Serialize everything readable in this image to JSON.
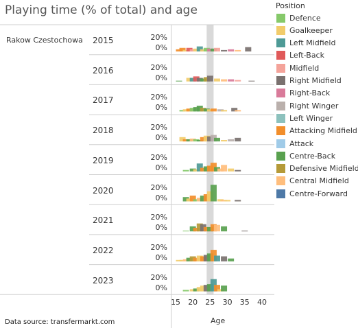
{
  "title": "Playing time (% of total) and age",
  "club": "Rakow Czestochowa",
  "source": "Data source: transfermarkt.com",
  "legend": {
    "title": "Position",
    "items": [
      {
        "label": "Defence",
        "color": "#86c96a"
      },
      {
        "label": "Goalkeeper",
        "color": "#f2cc6b"
      },
      {
        "label": "Left Midfield",
        "color": "#4e9a96"
      },
      {
        "label": "Left-Back",
        "color": "#e05a5a"
      },
      {
        "label": "Midfield",
        "color": "#f4a39a"
      },
      {
        "label": "Right Midfield",
        "color": "#7a716f"
      },
      {
        "label": "Right-Back",
        "color": "#d97b9a"
      },
      {
        "label": "Right Winger",
        "color": "#bab0ac"
      },
      {
        "label": "Left Winger",
        "color": "#8cc1bd"
      },
      {
        "label": "Attacking Midfield",
        "color": "#f28e2b"
      },
      {
        "label": "Attack",
        "color": "#a0cbe8"
      },
      {
        "label": "Centre-Back",
        "color": "#59a14f"
      },
      {
        "label": "Defensive Midfield",
        "color": "#b59a38"
      },
      {
        "label": "Central Midfield",
        "color": "#ffbe7d"
      },
      {
        "label": "Centre-Forward",
        "color": "#4e79a7"
      }
    ]
  },
  "chart_data": {
    "type": "bar",
    "xlabel": "Age",
    "x_ticks": [
      "15",
      "20",
      "25",
      "30",
      "35",
      "40"
    ],
    "y_ticks": [
      "20%",
      "0%"
    ],
    "highlight_age_range": [
      24,
      26
    ],
    "xlim": [
      15,
      40
    ],
    "ylim": [
      0,
      0.25
    ],
    "panels": [
      {
        "year": "2015",
        "bars": [
          {
            "age": 16,
            "value": 0.03,
            "pos": "Attacking Midfield"
          },
          {
            "age": 17,
            "value": 0.05,
            "pos": "Attacking Midfield"
          },
          {
            "age": 18,
            "value": 0.02,
            "pos": "Goalkeeper"
          },
          {
            "age": 19,
            "value": 0.05,
            "pos": "Left-Back"
          },
          {
            "age": 20,
            "value": 0.03,
            "pos": "Midfield"
          },
          {
            "age": 21,
            "value": 0.04,
            "pos": "Goalkeeper"
          },
          {
            "age": 22,
            "value": 0.07,
            "pos": "Left Midfield"
          },
          {
            "age": 23,
            "value": 0.03,
            "pos": "Goalkeeper"
          },
          {
            "age": 24,
            "value": 0.05,
            "pos": "Defence"
          },
          {
            "age": 25,
            "value": 0.04,
            "pos": "Right-Back"
          },
          {
            "age": 26,
            "value": 0.04,
            "pos": "Centre-Back"
          },
          {
            "age": 27,
            "value": 0.05,
            "pos": "Midfield"
          },
          {
            "age": 29,
            "value": 0.02,
            "pos": "Right Midfield"
          },
          {
            "age": 31,
            "value": 0.03,
            "pos": "Right-Back"
          },
          {
            "age": 33,
            "value": 0.02,
            "pos": "Central Midfield"
          },
          {
            "age": 36,
            "value": 0.06,
            "pos": "Right Midfield"
          }
        ]
      },
      {
        "year": "2016",
        "bars": [
          {
            "age": 16,
            "value": 0.01,
            "pos": "Centre-Back"
          },
          {
            "age": 19,
            "value": 0.05,
            "pos": "Goalkeeper"
          },
          {
            "age": 20,
            "value": 0.05,
            "pos": "Left Midfield"
          },
          {
            "age": 21,
            "value": 0.07,
            "pos": "Left-Back"
          },
          {
            "age": 22,
            "value": 0.05,
            "pos": "Right Midfield"
          },
          {
            "age": 23,
            "value": 0.04,
            "pos": "Centre-Back"
          },
          {
            "age": 24,
            "value": 0.06,
            "pos": "Defensive Midfield"
          },
          {
            "age": 25,
            "value": 0.08,
            "pos": "Right Midfield"
          },
          {
            "age": 27,
            "value": 0.04,
            "pos": "Goalkeeper"
          },
          {
            "age": 29,
            "value": 0.03,
            "pos": "Central Midfield"
          },
          {
            "age": 31,
            "value": 0.03,
            "pos": "Right-Back"
          },
          {
            "age": 33,
            "value": 0.02,
            "pos": "Midfield"
          },
          {
            "age": 37,
            "value": 0.01,
            "pos": "Right Midfield"
          }
        ]
      },
      {
        "year": "2017",
        "bars": [
          {
            "age": 17,
            "value": 0.02,
            "pos": "Defence"
          },
          {
            "age": 18,
            "value": 0.03,
            "pos": "Goalkeeper"
          },
          {
            "age": 19,
            "value": 0.04,
            "pos": "Attacking Midfield"
          },
          {
            "age": 20,
            "value": 0.05,
            "pos": "Defence"
          },
          {
            "age": 21,
            "value": 0.06,
            "pos": "Centre-Back"
          },
          {
            "age": 22,
            "value": 0.08,
            "pos": "Centre-Back"
          },
          {
            "age": 23,
            "value": 0.05,
            "pos": "Defensive Midfield"
          },
          {
            "age": 24,
            "value": 0.04,
            "pos": "Centre-Back"
          },
          {
            "age": 25,
            "value": 0.03,
            "pos": "Goalkeeper"
          },
          {
            "age": 26,
            "value": 0.04,
            "pos": "Attacking Midfield"
          },
          {
            "age": 28,
            "value": 0.03,
            "pos": "Right Winger"
          },
          {
            "age": 29,
            "value": 0.02,
            "pos": "Goalkeeper"
          },
          {
            "age": 32,
            "value": 0.05,
            "pos": "Right Midfield"
          },
          {
            "age": 33,
            "value": 0.02,
            "pos": "Central Midfield"
          }
        ]
      },
      {
        "year": "2018",
        "bars": [
          {
            "age": 17,
            "value": 0.06,
            "pos": "Goalkeeper"
          },
          {
            "age": 18,
            "value": 0.03,
            "pos": "Attacking Midfield"
          },
          {
            "age": 19,
            "value": 0.03,
            "pos": "Centre-Back"
          },
          {
            "age": 20,
            "value": 0.04,
            "pos": "Central Midfield"
          },
          {
            "age": 21,
            "value": 0.03,
            "pos": "Defence"
          },
          {
            "age": 22,
            "value": 0.02,
            "pos": "Centre-Back"
          },
          {
            "age": 23,
            "value": 0.06,
            "pos": "Attacking Midfield"
          },
          {
            "age": 24,
            "value": 0.08,
            "pos": "Goalkeeper"
          },
          {
            "age": 25,
            "value": 0.07,
            "pos": "Right Midfield"
          },
          {
            "age": 26,
            "value": 0.09,
            "pos": "Right Winger"
          },
          {
            "age": 27,
            "value": 0.05,
            "pos": "Centre-Back"
          },
          {
            "age": 29,
            "value": 0.02,
            "pos": "Goalkeeper"
          },
          {
            "age": 31,
            "value": 0.03,
            "pos": "Right Winger"
          },
          {
            "age": 33,
            "value": 0.05,
            "pos": "Right Midfield"
          }
        ]
      },
      {
        "year": "2019",
        "bars": [
          {
            "age": 18,
            "value": 0.02,
            "pos": "Defence"
          },
          {
            "age": 20,
            "value": 0.04,
            "pos": "Centre-Back"
          },
          {
            "age": 21,
            "value": 0.03,
            "pos": "Goalkeeper"
          },
          {
            "age": 22,
            "value": 0.11,
            "pos": "Left Midfield"
          },
          {
            "age": 23,
            "value": 0.05,
            "pos": "Attacking Midfield"
          },
          {
            "age": 24,
            "value": 0.07,
            "pos": "Centre-Back"
          },
          {
            "age": 25,
            "value": 0.08,
            "pos": "Attacking Midfield"
          },
          {
            "age": 26,
            "value": 0.12,
            "pos": "Attacking Midfield"
          },
          {
            "age": 27,
            "value": 0.06,
            "pos": "Centre-Back"
          },
          {
            "age": 28,
            "value": 0.04,
            "pos": "Central Midfield"
          },
          {
            "age": 29,
            "value": 0.09,
            "pos": "Central Midfield"
          },
          {
            "age": 31,
            "value": 0.04,
            "pos": "Goalkeeper"
          },
          {
            "age": 33,
            "value": 0.02,
            "pos": "Right Midfield"
          }
        ]
      },
      {
        "year": "2020",
        "bars": [
          {
            "age": 18,
            "value": 0.06,
            "pos": "Centre-Back"
          },
          {
            "age": 19,
            "value": 0.04,
            "pos": "Goalkeeper"
          },
          {
            "age": 20,
            "value": 0.08,
            "pos": "Attacking Midfield"
          },
          {
            "age": 21,
            "value": 0.03,
            "pos": "Defence"
          },
          {
            "age": 22,
            "value": 0.05,
            "pos": "Central Midfield"
          },
          {
            "age": 23,
            "value": 0.08,
            "pos": "Centre-Back"
          },
          {
            "age": 24,
            "value": 0.1,
            "pos": "Attacking Midfield"
          },
          {
            "age": 25,
            "value": 0.14,
            "pos": "Goalkeeper"
          },
          {
            "age": 26,
            "value": 0.23,
            "pos": "Centre-Back"
          },
          {
            "age": 28,
            "value": 0.03,
            "pos": "Goalkeeper"
          },
          {
            "age": 29,
            "value": 0.02,
            "pos": "Central Midfield"
          },
          {
            "age": 30,
            "value": 0.02,
            "pos": "Goalkeeper"
          },
          {
            "age": 33,
            "value": 0.02,
            "pos": "Right Midfield"
          }
        ]
      },
      {
        "year": "2021",
        "bars": [
          {
            "age": 18,
            "value": 0.01,
            "pos": "Defence"
          },
          {
            "age": 20,
            "value": 0.07,
            "pos": "Centre-Back"
          },
          {
            "age": 21,
            "value": 0.05,
            "pos": "Attacking Midfield"
          },
          {
            "age": 22,
            "value": 0.11,
            "pos": "Defensive Midfield"
          },
          {
            "age": 23,
            "value": 0.1,
            "pos": "Right Midfield"
          },
          {
            "age": 24,
            "value": 0.06,
            "pos": "Attacking Midfield"
          },
          {
            "age": 25,
            "value": 0.06,
            "pos": "Centre-Back"
          },
          {
            "age": 26,
            "value": 0.1,
            "pos": "Attacking Midfield"
          },
          {
            "age": 27,
            "value": 0.09,
            "pos": "Central Midfield"
          },
          {
            "age": 29,
            "value": 0.07,
            "pos": "Centre-Back"
          },
          {
            "age": 35,
            "value": 0.01,
            "pos": "Right Midfield"
          }
        ]
      },
      {
        "year": "2022",
        "bars": [
          {
            "age": 16,
            "value": 0.02,
            "pos": "Goalkeeper"
          },
          {
            "age": 17,
            "value": 0.02,
            "pos": "Goalkeeper"
          },
          {
            "age": 18,
            "value": 0.03,
            "pos": "Central Midfield"
          },
          {
            "age": 19,
            "value": 0.05,
            "pos": "Centre-Back"
          },
          {
            "age": 20,
            "value": 0.07,
            "pos": "Defensive Midfield"
          },
          {
            "age": 21,
            "value": 0.05,
            "pos": "Attacking Midfield"
          },
          {
            "age": 22,
            "value": 0.08,
            "pos": "Goalkeeper"
          },
          {
            "age": 23,
            "value": 0.07,
            "pos": "Attacking Midfield"
          },
          {
            "age": 24,
            "value": 0.09,
            "pos": "Right Midfield"
          },
          {
            "age": 25,
            "value": 0.11,
            "pos": "Centre-Back"
          },
          {
            "age": 26,
            "value": 0.16,
            "pos": "Attacking Midfield"
          },
          {
            "age": 27,
            "value": 0.08,
            "pos": "Left Midfield"
          },
          {
            "age": 29,
            "value": 0.07,
            "pos": "Right Midfield"
          },
          {
            "age": 31,
            "value": 0.04,
            "pos": "Centre-Back"
          }
        ]
      },
      {
        "year": "2023",
        "bars": [
          {
            "age": 18,
            "value": 0.02,
            "pos": "Defence"
          },
          {
            "age": 20,
            "value": 0.03,
            "pos": "Goalkeeper"
          },
          {
            "age": 21,
            "value": 0.04,
            "pos": "Centre-Back"
          },
          {
            "age": 22,
            "value": 0.06,
            "pos": "Goalkeeper"
          },
          {
            "age": 23,
            "value": 0.08,
            "pos": "Goalkeeper"
          },
          {
            "age": 24,
            "value": 0.09,
            "pos": "Right Midfield"
          },
          {
            "age": 25,
            "value": 0.1,
            "pos": "Centre-Back"
          },
          {
            "age": 26,
            "value": 0.17,
            "pos": "Left Midfield"
          },
          {
            "age": 27,
            "value": 0.09,
            "pos": "Attacking Midfield"
          },
          {
            "age": 28,
            "value": 0.03,
            "pos": "Goalkeeper"
          },
          {
            "age": 29,
            "value": 0.08,
            "pos": "Centre-Back"
          }
        ]
      }
    ]
  }
}
